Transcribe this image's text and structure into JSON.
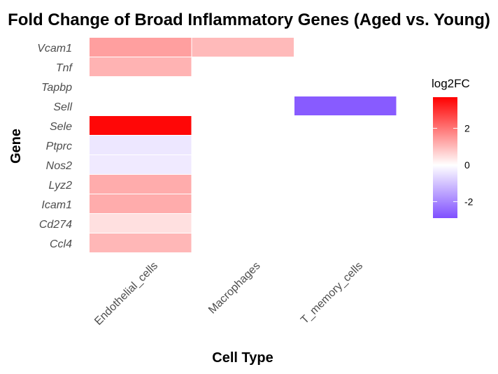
{
  "chart_data": {
    "type": "heatmap",
    "title": "Fold Change of Broad Inflammatory Genes (Aged vs. Young)",
    "xlabel": "Cell Type",
    "ylabel": "Gene",
    "x_categories": [
      "Endothelial_cells",
      "Macrophages",
      "T_memory_cells"
    ],
    "y_categories": [
      "Ccl4",
      "Cd274",
      "Icam1",
      "Lyz2",
      "Nos2",
      "Ptprc",
      "Sele",
      "Sell",
      "Tapbp",
      "Tnf",
      "Vcam1"
    ],
    "cells": [
      {
        "x": "Endothelial_cells",
        "y": "Vcam1",
        "value": 1.4
      },
      {
        "x": "Macrophages",
        "y": "Vcam1",
        "value": 1.0
      },
      {
        "x": "Endothelial_cells",
        "y": "Tnf",
        "value": 1.1
      },
      {
        "x": "Endothelial_cells",
        "y": "Tapbp",
        "value": 0.0
      },
      {
        "x": "T_memory_cells",
        "y": "Sell",
        "value": -2.7
      },
      {
        "x": "Endothelial_cells",
        "y": "Sele",
        "value": 3.6
      },
      {
        "x": "Endothelial_cells",
        "y": "Ptprc",
        "value": -0.4
      },
      {
        "x": "Endothelial_cells",
        "y": "Nos2",
        "value": -0.35
      },
      {
        "x": "Endothelial_cells",
        "y": "Lyz2",
        "value": 1.2
      },
      {
        "x": "Endothelial_cells",
        "y": "Icam1",
        "value": 1.2
      },
      {
        "x": "Endothelial_cells",
        "y": "Cd274",
        "value": 0.45
      },
      {
        "x": "Endothelial_cells",
        "y": "Ccl4",
        "value": 1.05
      }
    ],
    "legend": {
      "title": "log2FC",
      "ticks": [
        2,
        0,
        -2
      ],
      "range": [
        -2.9,
        3.7
      ],
      "low_color": "#7f4fff",
      "mid_color": "#ffffff",
      "high_color": "#ff0000",
      "position": "right"
    }
  }
}
